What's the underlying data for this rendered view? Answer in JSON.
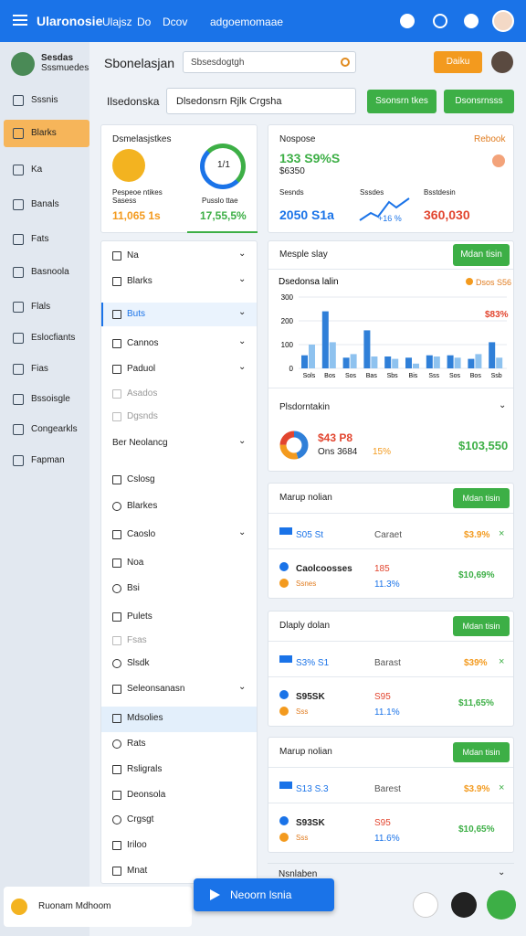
{
  "topbar": {
    "brand": "Ularonosie",
    "nav": [
      "Ulajsz",
      "Do",
      "Dcov",
      "adgoemomaae"
    ]
  },
  "sidebar": {
    "user": {
      "name": "Sesdas",
      "role": "Sssmuedes"
    },
    "menu": [
      "Sssnis",
      "Blarks",
      "Ka",
      "Banals",
      "Fats",
      "Basnoola",
      "Flals",
      "Eslocfiants",
      "Fias",
      "Bssoisgle",
      "Congearkls",
      "Fapman"
    ],
    "footer": "Ruonam Mdhoom"
  },
  "header": {
    "title": "Sbonelasjan",
    "search": "Sbsesdogtgh",
    "button": "Daiku"
  },
  "filter": {
    "label": "Ilsedonska",
    "input": "Dlsedonsrn Rjlk Crgsha",
    "buttons": [
      "Ssonsrn tkes",
      "Dsonsrnsss"
    ]
  },
  "summary": {
    "title": "Dsmelasjstkes",
    "icon_label": "1/1",
    "left": {
      "caption1": "Pespeoe ntikes",
      "caption2": "Sasess",
      "value": "11,065 1s"
    },
    "right": {
      "caption": "Pusslo ttae",
      "value": "17,55,5%"
    }
  },
  "stats": {
    "title": "Nospose",
    "link": "Rebook",
    "main": "133 S9%S",
    "sub": "$6350",
    "items": [
      {
        "label": "Sesnds",
        "value": "2050 S1a"
      },
      {
        "label": "Sssdes",
        "value": "+16 %"
      },
      {
        "label": "Bsstdesin",
        "value": "360,030"
      }
    ]
  },
  "list": {
    "items": [
      "Na",
      "Blarks",
      "Buts",
      "Cannos",
      "Paduol",
      "Asados",
      "Dgsnds",
      "Ber Neolancg",
      "Cslosg",
      "Blarkes",
      "Caoslo",
      "Noa",
      "Bsi",
      "Pulets",
      "Fsas",
      "Slsdk",
      "Seleonsanasn",
      "Mdsolies",
      "Rats",
      "Rsligrals",
      "Deonsola",
      "Crgsgt",
      "Iriloo",
      "Mnat"
    ]
  },
  "chart_panel": {
    "title": "Mesple slay",
    "button": "Mdan tisin",
    "chart": {
      "type": "bar",
      "title": "Dsedonsa lalin",
      "legend": "Dsos S56",
      "badge": "$83%",
      "ylim": [
        0,
        300
      ],
      "yticks": [
        0,
        100,
        200,
        300
      ],
      "categories": [
        "Sols",
        "Bos",
        "Sos",
        "Bas",
        "Sbs",
        "Bis",
        "Sss",
        "Sos",
        "Bos",
        "Ssb"
      ],
      "series": [
        {
          "color": "#2f7fd8",
          "values": [
            55,
            240,
            45,
            160,
            50,
            45,
            55,
            55,
            40,
            110
          ]
        },
        {
          "color": "#8ec2ef",
          "values": [
            100,
            110,
            60,
            50,
            40,
            20,
            50,
            45,
            60,
            45
          ]
        }
      ]
    }
  },
  "donut_panel": {
    "title": "Plsdorntakin",
    "value": "$43 P8",
    "sub": "Ons 3684",
    "pct": "15%",
    "total": "$103,550",
    "segments": [
      {
        "color": "#2f7fd8",
        "value": 45
      },
      {
        "color": "#f39a1e",
        "value": 30
      },
      {
        "color": "#e2452f",
        "value": 25
      }
    ]
  },
  "tables": [
    {
      "title": "Marup nolian",
      "button": "Mdan tisin",
      "rows": [
        {
          "a": "S05 St",
          "b": "Caraet",
          "c": "$3.9%"
        },
        {
          "a": "Caolcoosses",
          "a2": "Ssnes",
          "b": "185",
          "b2": "11.3%",
          "c": "$10,69%"
        }
      ]
    },
    {
      "title": "Dlaply dolan",
      "button": "Mdan tisin",
      "rows": [
        {
          "a": "S3% S1",
          "b": "Barast",
          "c": "$39%"
        },
        {
          "a": "S95SK",
          "a2": "Sss",
          "b": "S95",
          "b2": "11.1%",
          "c": "$11,65%"
        }
      ]
    },
    {
      "title": "Marup nolian",
      "button": "Mdan tisin",
      "rows": [
        {
          "a": "S13 S.3",
          "b": "Barest",
          "c": "$3.9%"
        },
        {
          "a": "S93SK",
          "a2": "Sss",
          "b": "S95",
          "b2": "11.6%",
          "c": "$10,65%"
        }
      ]
    }
  ],
  "footer": {
    "section": "Nsnlaben",
    "cta": "Neoorn lsnia"
  }
}
